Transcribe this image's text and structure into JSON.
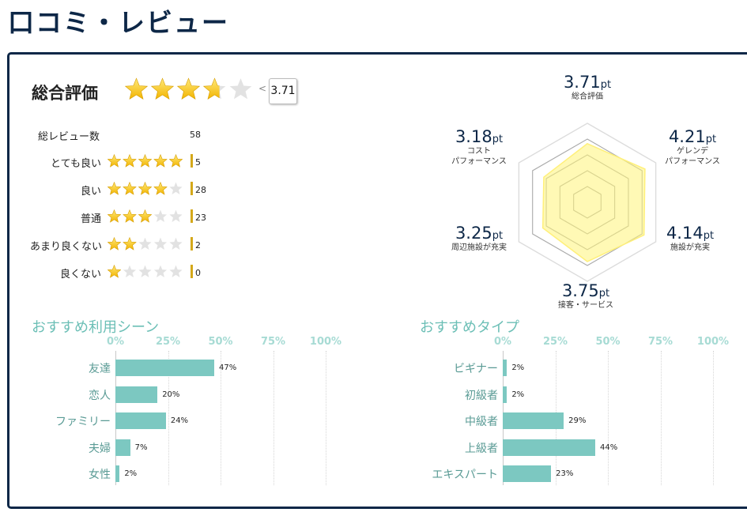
{
  "page_title": "口コミ・レビュー",
  "overall": {
    "label": "総合評価",
    "score": "3.71",
    "stars_value": 3.71
  },
  "review_count": {
    "label": "総レビュー数",
    "value": "58"
  },
  "rating_rows": [
    {
      "label": "とても良い",
      "stars": 5,
      "count": "5"
    },
    {
      "label": "良い",
      "stars": 4,
      "count": "28"
    },
    {
      "label": "普通",
      "stars": 3,
      "count": "23"
    },
    {
      "label": "あまり良くない",
      "stars": 2,
      "count": "2"
    },
    {
      "label": "良くない",
      "stars": 1,
      "count": "0"
    }
  ],
  "radar": {
    "unit": "pt",
    "scale_max": 5,
    "axes": [
      {
        "value": "3.71",
        "lines": [
          "総合評価"
        ]
      },
      {
        "value": "4.21",
        "lines": [
          "ゲレンデ",
          "パフォーマンス"
        ]
      },
      {
        "value": "4.14",
        "lines": [
          "施設が充実"
        ]
      },
      {
        "value": "3.75",
        "lines": [
          "接客・サービス"
        ]
      },
      {
        "value": "3.25",
        "lines": [
          "周辺施設が充実"
        ]
      },
      {
        "value": "3.18",
        "lines": [
          "コスト",
          "パフォーマンス"
        ]
      }
    ]
  },
  "charts": {
    "ticks": [
      "0%",
      "25%",
      "50%",
      "75%",
      "100%"
    ],
    "bar_color": "#7cc8c1"
  },
  "chart_data": [
    {
      "type": "bar",
      "title": "おすすめ利用シーン",
      "categories": [
        "友達",
        "恋人",
        "ファミリー",
        "夫婦",
        "女性"
      ],
      "values": [
        47,
        20,
        24,
        7,
        2
      ],
      "labels": [
        "47%",
        "20%",
        "24%",
        "7%",
        "2%"
      ],
      "xlim": [
        0,
        100
      ]
    },
    {
      "type": "bar",
      "title": "おすすめタイプ",
      "categories": [
        "ビギナー",
        "初級者",
        "中級者",
        "上級者",
        "エキスパート"
      ],
      "values": [
        2,
        2,
        29,
        44,
        23
      ],
      "labels": [
        "2%",
        "2%",
        "29%",
        "44%",
        "23%"
      ],
      "xlim": [
        0,
        100
      ]
    }
  ]
}
